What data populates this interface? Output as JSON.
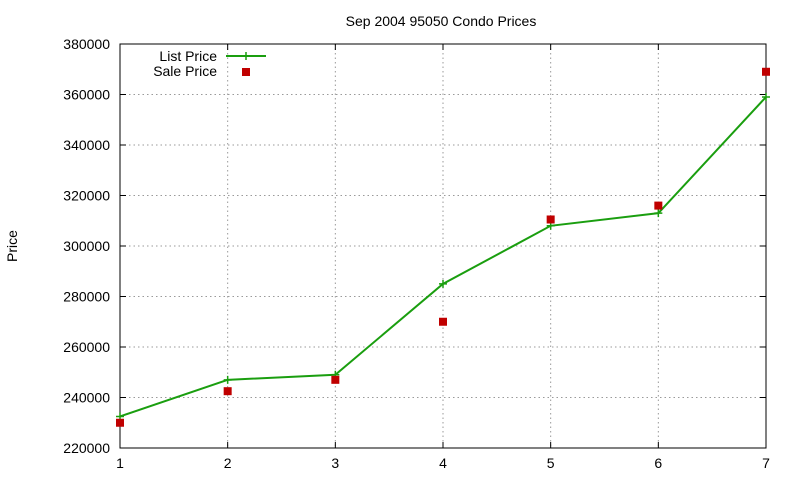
{
  "chart_data": {
    "type": "line",
    "title": "Sep 2004 95050 Condo Prices",
    "xlabel": "",
    "ylabel": "Price",
    "x": [
      1,
      2,
      3,
      4,
      5,
      6,
      7
    ],
    "xlim": [
      1,
      7
    ],
    "ylim": [
      220000,
      380000
    ],
    "x_ticks": [
      "1",
      "2",
      "3",
      "4",
      "5",
      "6",
      "7"
    ],
    "y_ticks": [
      "220000",
      "240000",
      "260000",
      "280000",
      "300000",
      "320000",
      "340000",
      "360000",
      "380000"
    ],
    "grid": true,
    "legend_position": "top-left",
    "series": [
      {
        "name": "List Price",
        "style": "line-with-plus-markers",
        "color": "#1a9e0f",
        "values": [
          232500,
          247000,
          249000,
          285000,
          308000,
          313000,
          359000
        ]
      },
      {
        "name": "Sale Price",
        "style": "square-markers",
        "color": "#c00000",
        "values": [
          230000,
          242500,
          247000,
          270000,
          310500,
          316000,
          369000
        ]
      }
    ]
  }
}
